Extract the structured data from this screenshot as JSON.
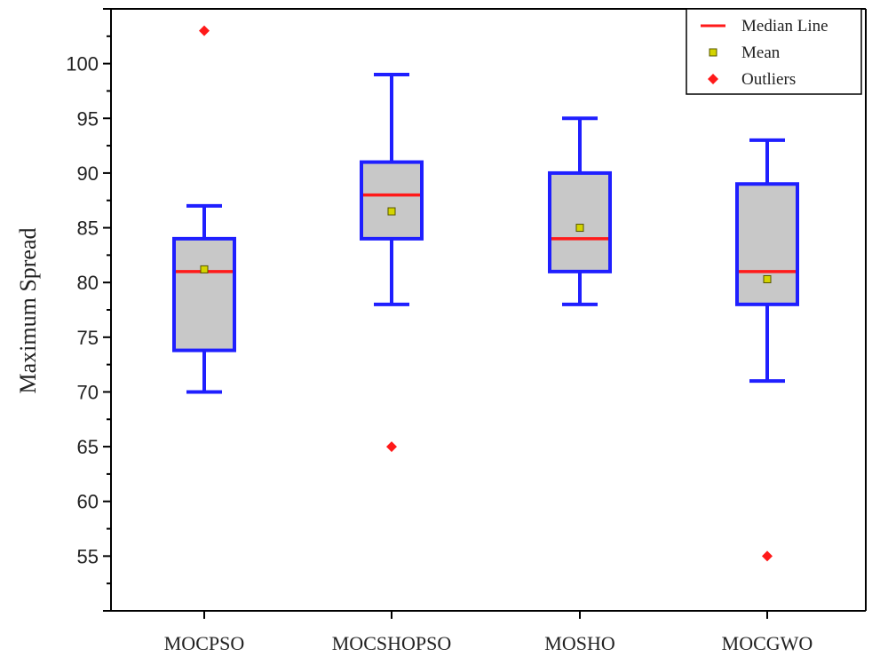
{
  "chart_data": {
    "type": "box",
    "ylabel": "Maximum Spread",
    "xlabel": "",
    "ylim": [
      50,
      105
    ],
    "yticks": [
      55,
      60,
      65,
      70,
      75,
      80,
      85,
      90,
      95,
      100
    ],
    "categories": [
      "MOCPSO",
      "MOCSHOPSO",
      "MOSHO",
      "MOCGWO"
    ],
    "boxes": [
      {
        "name": "MOCPSO",
        "whisker_low": 70,
        "q1": 73.8,
        "median": 81,
        "q3": 84,
        "whisker_high": 87,
        "mean": 81.2,
        "outliers": [
          103
        ]
      },
      {
        "name": "MOCSHOPSO",
        "whisker_low": 78,
        "q1": 84,
        "median": 88,
        "q3": 91,
        "whisker_high": 99,
        "mean": 86.5,
        "outliers": [
          65
        ]
      },
      {
        "name": "MOSHO",
        "whisker_low": 78,
        "q1": 81,
        "median": 84,
        "q3": 90,
        "whisker_high": 95,
        "mean": 85,
        "outliers": []
      },
      {
        "name": "MOCGWO",
        "whisker_low": 71,
        "q1": 78,
        "median": 81,
        "q3": 89,
        "whisker_high": 93,
        "mean": 80.3,
        "outliers": [
          55
        ]
      }
    ],
    "legend": {
      "position": "top-right",
      "entries": [
        {
          "label": "Median Line",
          "symbol": "line",
          "color": "#ff1a1a"
        },
        {
          "label": "Mean",
          "symbol": "square",
          "color": "#d4d400"
        },
        {
          "label": "Outliers",
          "symbol": "diamond",
          "color": "#ff1a1a"
        }
      ]
    },
    "colors": {
      "box_outline": "#1f1fff",
      "box_fill": "#c8c8c8",
      "median": "#ff1a1a",
      "mean_fill": "#d4d400",
      "outlier": "#ff1a1a",
      "axis": "#000000"
    }
  }
}
